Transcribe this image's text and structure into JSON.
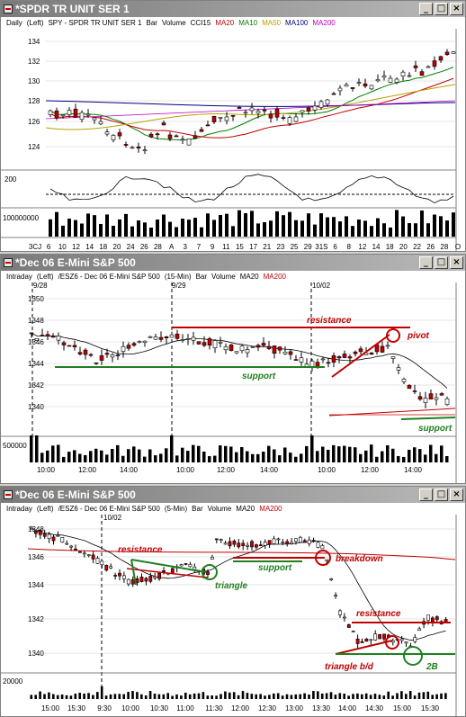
{
  "windows": [
    {
      "title": "*SPDR TR UNIT SER 1",
      "legend": [
        {
          "text": "Daily",
          "color": "#000000"
        },
        {
          "text": "(Left)",
          "color": "#000000"
        },
        {
          "text": "SPY - SPDR TR UNIT SER 1",
          "color": "#000000"
        },
        {
          "text": "Bar",
          "color": "#000000"
        },
        {
          "text": "Volume",
          "color": "#000000"
        },
        {
          "text": "CCI15",
          "color": "#000000"
        },
        {
          "text": "MA20",
          "color": "#c00000"
        },
        {
          "text": "MA10",
          "color": "#008000"
        },
        {
          "text": "MA50",
          "color": "#b8a000"
        },
        {
          "text": "MA100",
          "color": "#000080"
        },
        {
          "text": "MA200",
          "color": "#c000c0"
        }
      ],
      "y_labels": [
        "134",
        "132",
        "130",
        "128",
        "126",
        "124"
      ],
      "cci_label": "200",
      "vol_label": "100000000",
      "x_labels": [
        "3CJ",
        "6",
        "10",
        "12",
        "14",
        "18",
        "20",
        "24",
        "26",
        "28",
        "A",
        "3",
        "7",
        "9",
        "11",
        "15",
        "17",
        "21",
        "23",
        "25",
        "29",
        "31S",
        "6",
        "8",
        "12",
        "14",
        "18",
        "20",
        "22",
        "26",
        "28",
        "O"
      ]
    },
    {
      "title": "*Dec 06  E-Mini S&P 500",
      "legend": [
        {
          "text": "Intraday",
          "color": "#000000"
        },
        {
          "text": "(Left)",
          "color": "#000000"
        },
        {
          "text": "/ESZ6 - Dec 06  E-Mini S&P 500",
          "color": "#000000"
        },
        {
          "text": "(15-Min)",
          "color": "#000000"
        },
        {
          "text": "Bar",
          "color": "#000000"
        },
        {
          "text": "Volume",
          "color": "#000000"
        },
        {
          "text": "MA20",
          "color": "#000000"
        },
        {
          "text": "MA200",
          "color": "#c00000"
        }
      ],
      "date_markers": [
        "9/28",
        "9/29",
        "10/02"
      ],
      "y_labels": [
        "1350",
        "1348",
        "1346",
        "1344",
        "1342",
        "1340"
      ],
      "vol_label": "500000",
      "x_labels": [
        "10:00",
        "12:00",
        "14:00",
        "10:00",
        "12:00",
        "14:00",
        "10:00",
        "12:00",
        "14:00"
      ],
      "annotations": {
        "resistance": "resistance",
        "pivot": "pivot",
        "support": "support",
        "support2": "support"
      }
    },
    {
      "title": "*Dec 06  E-Mini S&P 500",
      "legend": [
        {
          "text": "Intraday",
          "color": "#000000"
        },
        {
          "text": "(Left)",
          "color": "#000000"
        },
        {
          "text": "/ESZ6 - Dec 06  E-Mini S&P 500",
          "color": "#000000"
        },
        {
          "text": "(5-Min)",
          "color": "#000000"
        },
        {
          "text": "Bar",
          "color": "#000000"
        },
        {
          "text": "Volume",
          "color": "#000000"
        },
        {
          "text": "MA20",
          "color": "#000000"
        },
        {
          "text": "MA200",
          "color": "#c00000"
        }
      ],
      "date_markers": [
        "10/02"
      ],
      "y_labels": [
        "1348",
        "1346",
        "1344",
        "1342",
        "1340"
      ],
      "vol_label": "20000",
      "x_labels": [
        "15:00",
        "15:30",
        "9:30",
        "10:00",
        "10:30",
        "11:00",
        "11:30",
        "12:00",
        "12:30",
        "13:00",
        "13:30",
        "14:00",
        "14:30",
        "15:00",
        "15:30"
      ],
      "annotations": {
        "resistance": "resistance",
        "triangle": "triangle",
        "support": "support",
        "breakdown": "breakdown",
        "resistance2": "resistance",
        "triangle_bd": "triangle b/d",
        "twoB": "2B"
      }
    }
  ],
  "window_buttons": {
    "minimize": "_",
    "maximize": "□",
    "close": "×"
  },
  "colors": {
    "up": "#ffffff",
    "down": "#c00000",
    "annotation_red": "#c00000",
    "annotation_green": "#208020"
  }
}
